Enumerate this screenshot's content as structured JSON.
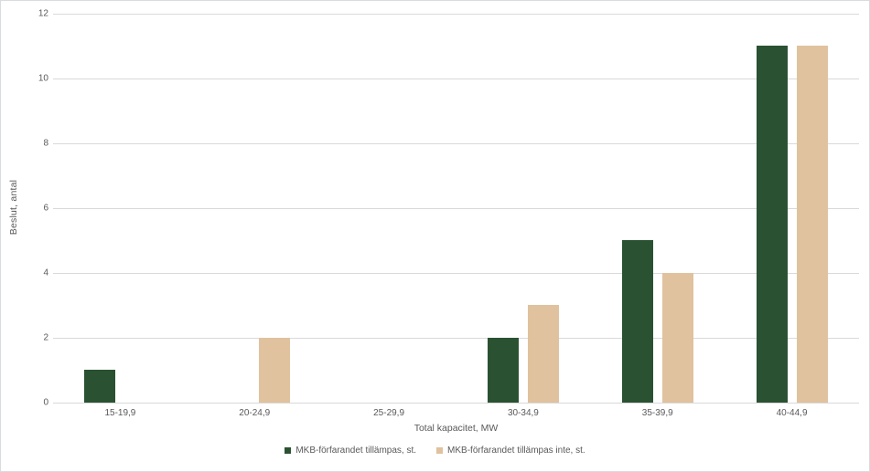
{
  "chart_data": {
    "type": "bar",
    "title": "",
    "categories": [
      "15-19,9",
      "20-24,9",
      "25-29,9",
      "30-34,9",
      "35-39,9",
      "40-44,9"
    ],
    "series": [
      {
        "name": "MKB-förfarandet tillämpas, st.",
        "color": "#2a5232",
        "values": [
          1,
          0,
          0,
          2,
          5,
          11
        ]
      },
      {
        "name": "MKB-förfarandet tillämpas inte, st.",
        "color": "#e0c29e",
        "values": [
          0,
          2,
          0,
          3,
          4,
          11
        ]
      }
    ],
    "xlabel": "Total kapacitet, MW",
    "ylabel": "Beslut, antal",
    "ylim": [
      0,
      12
    ],
    "yticks": [
      0,
      2,
      4,
      6,
      8,
      10,
      12
    ],
    "grid": true,
    "legend_position": "bottom",
    "colors": {
      "axis_text": "#595959",
      "gridline": "#d9d9d9",
      "frame_border": "#d8dcde",
      "background": "#ffffff"
    }
  }
}
